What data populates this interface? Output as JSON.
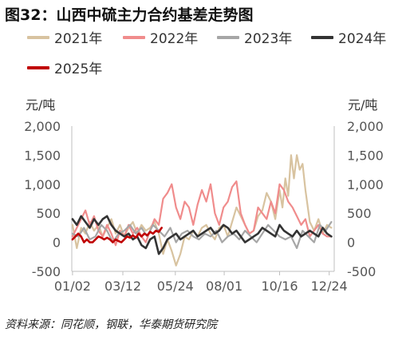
{
  "title": "图32：山西中硫主力合约基差走势图",
  "source": "资料来源：同花顺，钢联，华泰期货研究院",
  "colors": {
    "axis": "#bfbfbf",
    "tick_text": "#555555"
  },
  "chart_data": {
    "type": "line",
    "y_unit_left": "元/吨",
    "y_unit_right": "元/吨",
    "ylim": [
      -500,
      2000
    ],
    "yticks": [
      -500,
      0,
      500,
      1000,
      1500,
      2000
    ],
    "ytick_labels": [
      "-500",
      "0",
      "500",
      "1,000",
      "1,500",
      "2,000"
    ],
    "xlim": [
      1,
      366
    ],
    "xticks": [
      {
        "doy": 2,
        "label": "01/02"
      },
      {
        "doy": 72,
        "label": "03/12"
      },
      {
        "doy": 145,
        "label": "05/24"
      },
      {
        "doy": 213,
        "label": "08/01"
      },
      {
        "doy": 290,
        "label": "10/16"
      },
      {
        "doy": 359,
        "label": "12/24"
      }
    ],
    "grid": false,
    "legend_position": "top",
    "x_unit_note": "x values are day-of-year (1 = 01/01)",
    "series": [
      {
        "name": "2021年",
        "color": "#d8c3a0",
        "x": [
          2,
          8,
          14,
          20,
          26,
          32,
          38,
          44,
          50,
          56,
          62,
          68,
          74,
          80,
          86,
          92,
          98,
          104,
          110,
          116,
          122,
          128,
          134,
          140,
          146,
          152,
          158,
          164,
          170,
          176,
          182,
          188,
          194,
          200,
          206,
          212,
          218,
          224,
          230,
          236,
          242,
          248,
          254,
          260,
          266,
          272,
          278,
          284,
          290,
          294,
          298,
          302,
          306,
          310,
          314,
          318,
          322,
          326,
          332,
          338,
          344,
          350,
          356,
          362
        ],
        "values": [
          300,
          -100,
          250,
          150,
          350,
          200,
          300,
          100,
          250,
          400,
          150,
          300,
          100,
          250,
          350,
          150,
          300,
          200,
          250,
          350,
          150,
          -200,
          50,
          -150,
          -400,
          -200,
          100,
          50,
          200,
          100,
          250,
          300,
          150,
          50,
          250,
          300,
          100,
          350,
          600,
          450,
          300,
          150,
          200,
          450,
          550,
          850,
          700,
          400,
          900,
          600,
          1100,
          800,
          1500,
          1100,
          1500,
          1250,
          1350,
          900,
          350,
          200,
          400,
          150,
          300,
          250
        ]
      },
      {
        "name": "2022年",
        "color": "#f08c8c",
        "x": [
          2,
          8,
          14,
          20,
          26,
          32,
          38,
          44,
          50,
          56,
          62,
          68,
          74,
          80,
          86,
          92,
          98,
          104,
          110,
          116,
          122,
          128,
          134,
          140,
          146,
          152,
          158,
          164,
          170,
          176,
          182,
          188,
          194,
          200,
          206,
          212,
          218,
          224,
          230,
          236,
          242,
          248,
          254,
          260,
          266,
          272,
          278,
          284,
          290,
          296,
          302,
          308,
          314,
          320,
          326,
          332,
          338,
          344,
          350,
          356,
          362
        ],
        "values": [
          100,
          250,
          400,
          550,
          300,
          450,
          200,
          100,
          300,
          150,
          -50,
          200,
          100,
          300,
          150,
          250,
          100,
          0,
          200,
          400,
          300,
          750,
          850,
          1000,
          600,
          400,
          700,
          600,
          300,
          650,
          900,
          700,
          1000,
          500,
          300,
          600,
          700,
          950,
          1050,
          500,
          300,
          150,
          200,
          600,
          500,
          400,
          700,
          500,
          1000,
          900,
          700,
          600,
          450,
          300,
          400,
          100,
          200,
          300,
          150,
          100,
          100
        ]
      },
      {
        "name": "2023年",
        "color": "#a6a6a6",
        "x": [
          2,
          10,
          18,
          26,
          34,
          42,
          50,
          58,
          66,
          74,
          82,
          90,
          98,
          106,
          114,
          122,
          130,
          138,
          146,
          154,
          162,
          170,
          178,
          186,
          194,
          202,
          210,
          218,
          226,
          234,
          242,
          250,
          258,
          266,
          274,
          282,
          290,
          298,
          306,
          314,
          322,
          330,
          338,
          346,
          354,
          362
        ],
        "values": [
          150,
          100,
          250,
          50,
          100,
          300,
          200,
          0,
          150,
          200,
          300,
          150,
          250,
          100,
          300,
          200,
          100,
          250,
          0,
          150,
          200,
          100,
          50,
          150,
          100,
          200,
          0,
          100,
          150,
          50,
          200,
          100,
          0,
          150,
          300,
          200,
          100,
          50,
          100,
          -100,
          200,
          100,
          0,
          300,
          200,
          350
        ]
      },
      {
        "name": "2024年",
        "color": "#333333",
        "x": [
          2,
          8,
          14,
          20,
          26,
          32,
          38,
          44,
          50,
          56,
          62,
          68,
          74,
          80,
          86,
          92,
          98,
          104,
          110,
          116,
          122,
          128,
          134,
          140,
          146,
          152,
          158,
          164,
          170,
          176,
          182,
          188,
          194,
          200,
          206,
          212,
          218,
          224,
          230,
          236,
          242,
          248,
          254,
          260,
          266,
          272,
          278,
          284,
          290,
          296,
          302,
          308,
          314,
          320,
          326,
          332,
          338,
          344,
          350,
          356,
          362
        ],
        "values": [
          400,
          300,
          450,
          350,
          250,
          400,
          300,
          400,
          450,
          300,
          200,
          150,
          100,
          150,
          50,
          100,
          -50,
          -100,
          50,
          100,
          -200,
          -100,
          50,
          100,
          150,
          50,
          100,
          150,
          200,
          100,
          150,
          200,
          250,
          150,
          200,
          300,
          250,
          150,
          200,
          100,
          0,
          50,
          100,
          150,
          250,
          200,
          150,
          100,
          300,
          200,
          150,
          100,
          200,
          100,
          150,
          200,
          150,
          100,
          250,
          150,
          100
        ]
      },
      {
        "name": "2025年",
        "color": "#c00000",
        "x": [
          2,
          6,
          10,
          14,
          18,
          22,
          26,
          30,
          34,
          38,
          42,
          46,
          50,
          54,
          58,
          62,
          66,
          70,
          74,
          78,
          82,
          86,
          90,
          94,
          98,
          102,
          106,
          110,
          114,
          118,
          122,
          126
        ],
        "values": [
          50,
          100,
          150,
          100,
          0,
          50,
          0,
          0,
          50,
          100,
          80,
          50,
          80,
          50,
          0,
          50,
          20,
          0,
          50,
          100,
          80,
          120,
          80,
          150,
          100,
          150,
          120,
          180,
          150,
          200,
          180,
          250
        ]
      }
    ]
  }
}
